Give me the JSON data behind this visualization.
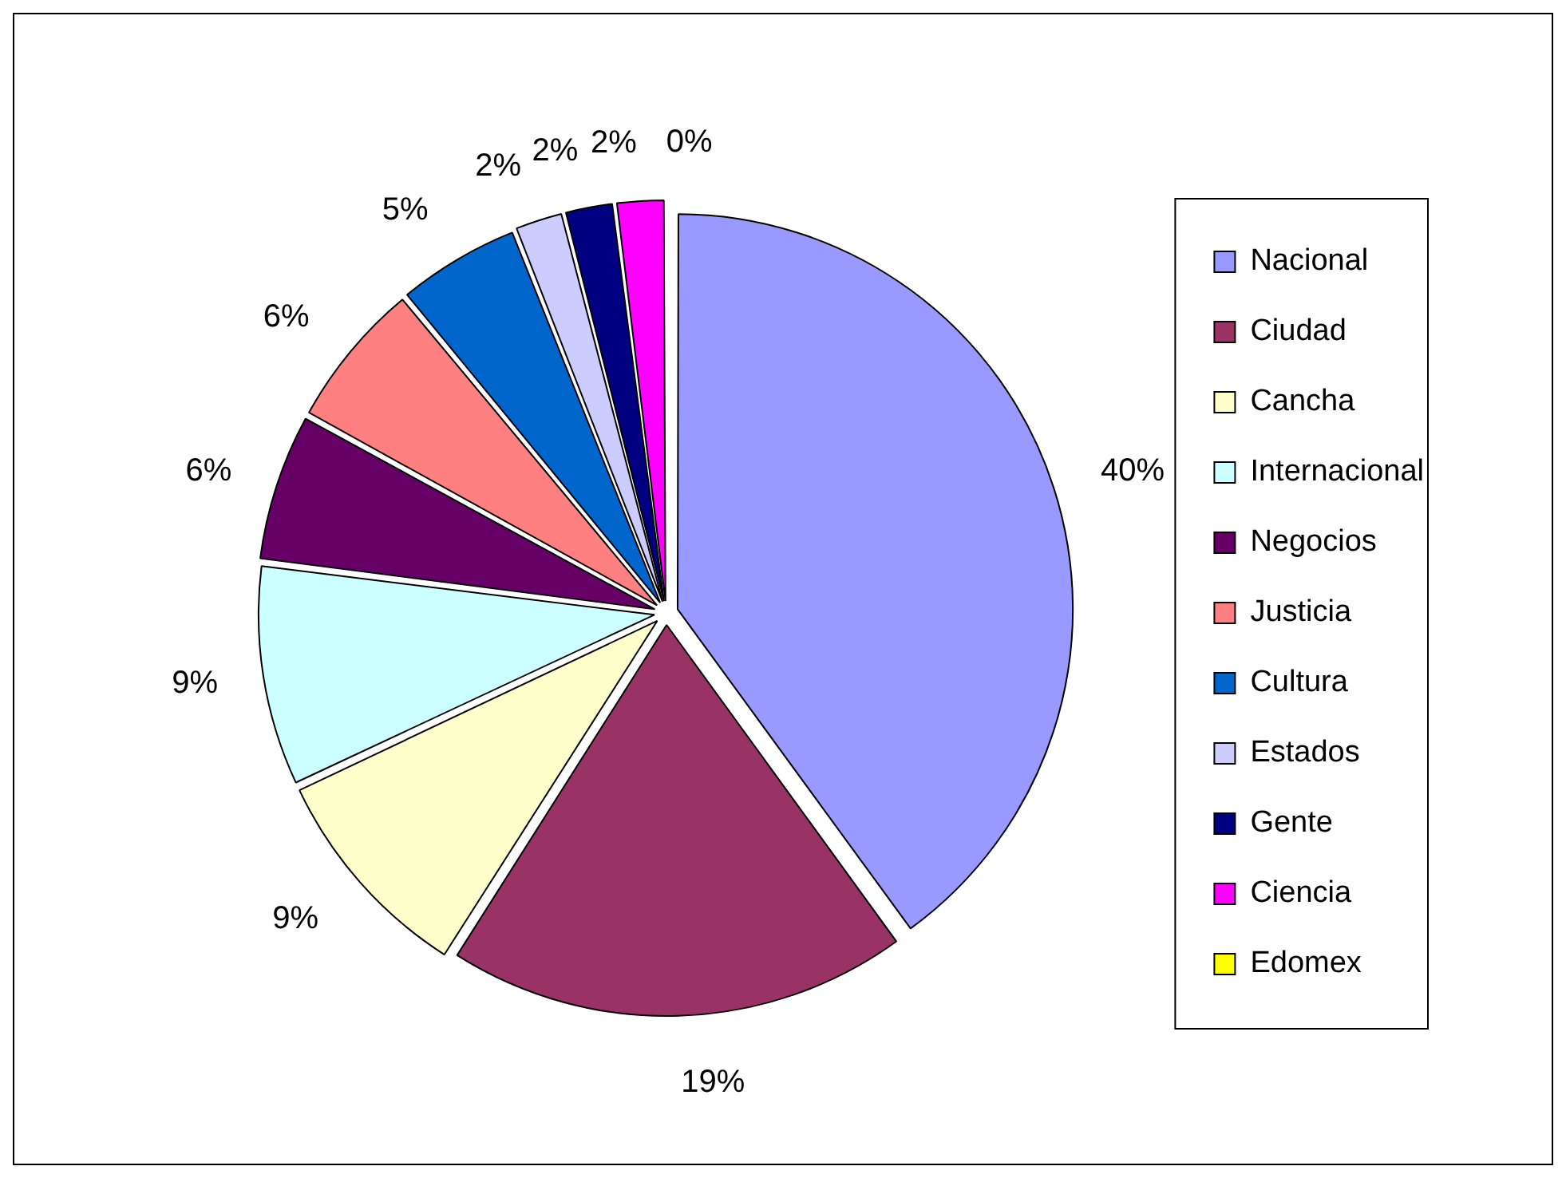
{
  "chart_data": {
    "type": "pie",
    "categories": [
      "Nacional",
      "Ciudad",
      "Cancha",
      "Internacional",
      "Negocios",
      "Justicia",
      "Cultura",
      "Estados",
      "Gente",
      "Ciencia",
      "Edomex"
    ],
    "values": [
      40,
      19,
      9,
      9,
      6,
      6,
      5,
      2,
      2,
      2,
      0
    ],
    "colors": [
      "#9999ff",
      "#993366",
      "#ffffcc",
      "#ccffff",
      "#660066",
      "#ff8080",
      "#0066cc",
      "#ccccff",
      "#000080",
      "#ff00ff",
      "#ffff00"
    ],
    "value_labels": [
      "40%",
      "19%",
      "9%",
      "9%",
      "6%",
      "6%",
      "5%",
      "2%",
      "2%",
      "2%",
      "0%"
    ],
    "legend": "right"
  }
}
